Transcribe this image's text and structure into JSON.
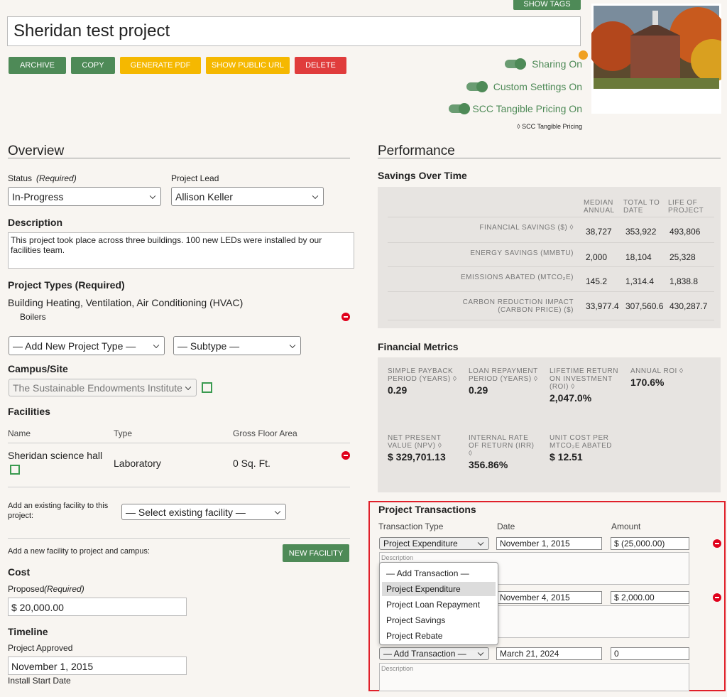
{
  "header": {
    "show_tags": "SHOW TAGS",
    "title": "Sheridan test project",
    "buttons": [
      "ARCHIVE",
      "COPY",
      "GENERATE PDF",
      "SHOW PUBLIC URL",
      "DELETE"
    ],
    "toggles": [
      "Sharing On",
      "Custom Settings On",
      "SCC Tangible Pricing On"
    ],
    "scc_note": "◊ SCC Tangible Pricing"
  },
  "overview": {
    "heading": "Overview",
    "status_label": "Status",
    "status_note": "(Required)",
    "status_value": "In-Progress",
    "lead_label": "Project Lead",
    "lead_value": "Allison Keller",
    "description_label": "Description",
    "description": "This project took place across three buildings. 100 new LEDs were installed by our facilities team.",
    "types_label": "Project Types (Required)",
    "type": "Building Heating, Ventilation, Air Conditioning (HVAC)",
    "subtype": "Boilers",
    "add_type": "— Add New Project Type —",
    "add_subtype": "— Subtype —",
    "campus_label": "Campus/Site",
    "campus": "The Sustainable Endowments Institute",
    "facilities_label": "Facilities",
    "facility_columns": [
      "Name",
      "Type",
      "Gross Floor Area"
    ],
    "facility_rows": [
      [
        "Sheridan science hall",
        "Laboratory",
        "0 Sq. Ft."
      ]
    ],
    "existing_label": "Add an existing facility to this project:",
    "existing_select": "— Select existing facility —",
    "new_label": "Add a new facility to project and campus:",
    "new_button": "NEW FACILITY",
    "cost_label": "Cost",
    "proposed_label": "Proposed",
    "proposed_note": "(Required)",
    "proposed_value": "$ 20,000.00",
    "timeline_label": "Timeline",
    "approved_label": "Project Approved",
    "approved_value": "November 1, 2015",
    "install_label": "Install Start Date"
  },
  "performance": {
    "heading": "Performance",
    "savings_heading": "Savings Over Time",
    "savings_columns": [
      "MEDIAN ANNUAL",
      "TOTAL TO DATE",
      "LIFE OF PROJECT"
    ],
    "savings_rows": [
      {
        "label": "FINANCIAL SAVINGS ($) ◊",
        "values": [
          "38,727",
          "353,922",
          "493,806"
        ]
      },
      {
        "label": "ENERGY SAVINGS (MMBTU)",
        "values": [
          "2,000",
          "18,104",
          "25,328"
        ]
      },
      {
        "label": "EMISSIONS ABATED (MTCO₂E)",
        "values": [
          "145.2",
          "1,314.4",
          "1,838.8"
        ]
      },
      {
        "label": "CARBON REDUCTION IMPACT (CARBON PRICE) ($)",
        "values": [
          "33,977.4",
          "307,560.6",
          "430,287.7"
        ]
      }
    ],
    "financial_heading": "Financial Metrics",
    "metrics": [
      {
        "label": "SIMPLE PAYBACK PERIOD (YEARS) ◊",
        "value": "0.29"
      },
      {
        "label": "LOAN REPAYMENT PERIOD (YEARS) ◊",
        "value": "0.29"
      },
      {
        "label": "LIFETIME RETURN ON INVESTMENT (ROI) ◊",
        "value": "2,047.0%"
      },
      {
        "label": "ANNUAL ROI ◊",
        "value": "170.6%"
      },
      {
        "label": "NET PRESENT VALUE (NPV) ◊",
        "value": "$ 329,701.13"
      },
      {
        "label": "INTERNAL RATE OF RETURN (IRR) ◊",
        "value": "356.86%"
      },
      {
        "label": "UNIT COST PER MTCO₂E ABATED",
        "value": "$ 12.51"
      }
    ]
  },
  "transactions": {
    "heading": "Project Transactions",
    "columns": [
      "Transaction Type",
      "Date",
      "Amount"
    ],
    "rows": [
      {
        "type": "Project Expenditure",
        "date": "November 1, 2015",
        "amount": "$ (25,000.00)",
        "description": "Description"
      },
      {
        "date": "November 4, 2015",
        "amount": "$ 2,000.00"
      },
      {
        "type": "— Add Transaction —",
        "date": "March 21, 2024",
        "amount": "0",
        "description": "Description"
      }
    ],
    "options": [
      "— Add Transaction —",
      "Project Expenditure",
      "Project Loan Repayment",
      "Project Savings",
      "Project Rebate"
    ]
  }
}
